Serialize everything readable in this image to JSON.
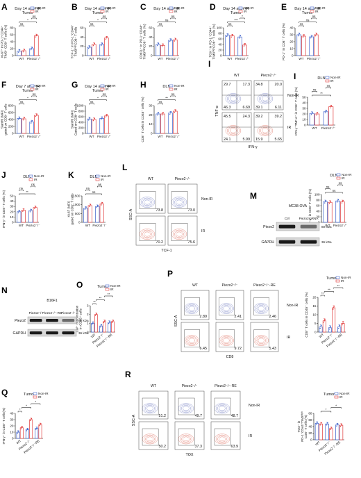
{
  "colors": {
    "nonir": "#3a5fc9",
    "ir": "#e03a3a"
  },
  "legend": {
    "nonir": "Non-IR",
    "ir": "IR"
  },
  "panels": [
    {
      "letter": "A",
      "title": [
        "Day 14 after IR",
        "Tumor"
      ],
      "ylabel": [
        "Ki-67⁺ in PD-1⁺CD44⁺",
        "TIM3⁺ CD8⁺ T cells (%)"
      ],
      "ylim": [
        0,
        80
      ],
      "ticks": [
        0,
        20,
        40,
        60,
        80
      ],
      "cats": [
        "WT",
        "Piezo2⁻/⁻"
      ],
      "nonir": [
        13,
        20
      ],
      "ir": [
        14,
        57
      ],
      "sig": [
        {
          "g": [
            0,
            1
          ],
          "t": "ns"
        },
        {
          "g": [
            0,
            3
          ],
          "t": "*"
        },
        {
          "g": [
            2,
            3
          ],
          "t": "ns"
        }
      ]
    },
    {
      "letter": "B",
      "title": [
        "Day 14 after IR",
        "Tumor"
      ],
      "ylabel": [
        "TCF-1⁺ in PD-1⁺CD44⁺",
        "TIM3ʰⁱᵍʰCD8⁺ T cells"
      ],
      "ylim": [
        0,
        60
      ],
      "ticks": [
        0,
        20,
        40,
        60
      ],
      "cats": [
        "WT",
        "Piezo2⁻/⁻"
      ],
      "nonir": [
        18,
        24
      ],
      "ir": [
        24,
        38
      ],
      "sig": [
        {
          "g": [
            0,
            1
          ],
          "t": "ns"
        },
        {
          "g": [
            0,
            3
          ],
          "t": "*"
        },
        {
          "g": [
            2,
            3
          ],
          "t": "ns"
        }
      ]
    },
    {
      "letter": "C",
      "title": [
        "Day 14 after IR"
      ],
      "ylabel": [
        "CD62L⁺ in PD-1⁺CD44⁺",
        "TIM3ʰⁱᵍʰCD8⁺ T cells (%)"
      ],
      "ylim": [
        0,
        60
      ],
      "ticks": [
        0,
        20,
        40,
        60
      ],
      "cats": [
        "WT",
        "Piezo2⁻/⁻"
      ],
      "nonir": [
        24,
        33
      ],
      "ir": [
        22,
        34
      ],
      "sig": [
        {
          "g": [
            0,
            1
          ],
          "t": "ns"
        },
        {
          "g": [
            0,
            3
          ],
          "t": "ns"
        },
        {
          "g": [
            2,
            3
          ],
          "t": "ns"
        }
      ]
    },
    {
      "letter": "D",
      "title": [
        "Day 14 after IR",
        "Tumor"
      ],
      "ylabel": [
        "TOX⁺ in PD-1⁺CD44⁺",
        "TIM3ʰⁱᵍʰCD8⁺ T cells (%)"
      ],
      "ylim": [
        0,
        100
      ],
      "ticks": [
        0,
        20,
        40,
        60,
        80,
        100
      ],
      "cats": [
        "WT",
        "Piezo2⁻/⁻"
      ],
      "nonir": [
        73,
        67
      ],
      "ir": [
        71,
        38
      ],
      "sig": [
        {
          "g": [
            0,
            1
          ],
          "t": "ns"
        },
        {
          "g": [
            0,
            3
          ],
          "t": "***"
        },
        {
          "g": [
            2,
            3
          ],
          "t": "*"
        }
      ]
    },
    {
      "letter": "E",
      "title": [
        "Day 14 after IR",
        "Tumor"
      ],
      "ylabel": [
        "PD-1⁺ in CD8⁺ T cells (%)"
      ],
      "ylim": [
        0,
        40
      ],
      "ticks": [
        0,
        10,
        20,
        30,
        40
      ],
      "cats": [
        "WT",
        "Piezo2⁻/⁻"
      ],
      "nonir": [
        30,
        27
      ],
      "ir": [
        28,
        30
      ],
      "sig": [
        {
          "g": [
            0,
            1
          ],
          "t": "ns"
        },
        {
          "g": [
            0,
            3
          ],
          "t": "ns"
        },
        {
          "g": [
            2,
            3
          ],
          "t": "ns"
        }
      ]
    },
    {
      "letter": "F",
      "title": [
        "Day 7 after IR",
        "Tumor"
      ],
      "ylabel": [
        "Slamf6 (MFI)",
        "gated on CD8⁺ T cells"
      ],
      "ylim": [
        0,
        800
      ],
      "ticks": [
        0,
        200,
        400,
        600,
        800
      ],
      "cats": [
        "WT",
        "Piezo2⁻/⁻"
      ],
      "nonir": [
        430,
        330
      ],
      "ir": [
        420,
        520
      ],
      "sig": [
        {
          "g": [
            0,
            1
          ],
          "t": "ns"
        },
        {
          "g": [
            0,
            3
          ],
          "t": "*"
        },
        {
          "g": [
            2,
            3
          ],
          "t": "ns"
        }
      ]
    },
    {
      "letter": "G",
      "title": [
        "Day 14 after IR",
        "Tumor"
      ],
      "ylabel": [
        "Slamf6 (MFI)",
        "Gated on CD8⁺ T cells"
      ],
      "ylim": [
        0,
        1000
      ],
      "ticks": [
        0,
        200,
        400,
        600,
        800,
        1000
      ],
      "cats": [
        "WT",
        "Piezo2⁻/⁻"
      ],
      "nonir": [
        520,
        540
      ],
      "ir": [
        500,
        630
      ],
      "sig": [
        {
          "g": [
            0,
            1
          ],
          "t": "ns"
        },
        {
          "g": [
            0,
            3
          ],
          "t": "*"
        },
        {
          "g": [
            2,
            3
          ],
          "t": "ns"
        }
      ]
    },
    {
      "letter": "H",
      "title": [
        "DLN"
      ],
      "ylabel": [
        "CD8⁺ T cells in CD45⁺ cells (%)"
      ],
      "ylim": [
        0,
        30
      ],
      "ticks": [
        0,
        10,
        20,
        30
      ],
      "cats": [
        "WT",
        "Piezo2⁻/⁻"
      ],
      "nonir": [
        21,
        22
      ],
      "ir": [
        21,
        24
      ],
      "sig": [
        {
          "g": [
            0,
            1
          ],
          "t": "ns"
        },
        {
          "g": [
            0,
            3
          ],
          "t": "**"
        },
        {
          "g": [
            2,
            3
          ],
          "t": "ns"
        }
      ]
    },
    {
      "letter": "I",
      "title": [
        "DLN"
      ],
      "ylabel": [
        "IFN-γ⁺TNF-α⁺ in CD8⁺ T cells (%)"
      ],
      "ylim": [
        0,
        50
      ],
      "ticks": [
        0,
        10,
        20,
        30,
        40,
        50
      ],
      "cats": [
        "WT",
        "Piezo2⁻/⁻"
      ],
      "nonir": [
        21,
        24
      ],
      "ir": [
        20,
        33
      ],
      "sig": [
        {
          "g": [
            0,
            3
          ],
          "t": "**"
        },
        {
          "g": [
            0,
            1
          ],
          "t": "ns"
        },
        {
          "g": [
            2,
            3
          ],
          "t": "ns"
        }
      ]
    },
    {
      "letter": "J",
      "title": [
        "DLN"
      ],
      "ylabel": [
        "IFN-γ⁺ in CD8⁺ T cells (%)"
      ],
      "ylim": [
        0,
        50
      ],
      "ticks": [
        0,
        10,
        20,
        30,
        40,
        50
      ],
      "cats": [
        "WT",
        "Piezo2⁻/⁻"
      ],
      "nonir": [
        20,
        22
      ],
      "ir": [
        23,
        28
      ],
      "sig": [
        {
          "g": [
            0,
            3
          ],
          "t": "**"
        },
        {
          "g": [
            0,
            1
          ],
          "t": "ns"
        },
        {
          "g": [
            2,
            3
          ],
          "t": "ns"
        }
      ]
    },
    {
      "letter": "K",
      "title": [
        "DLN"
      ],
      "ylabel": [
        "Ki-67 (MFI)",
        "gated on CD8⁺ T cells"
      ],
      "ylim": [
        0,
        1500
      ],
      "ticks": [
        0,
        500,
        1000,
        1500
      ],
      "cats": [
        "WT",
        "Piezo2⁻/⁻"
      ],
      "nonir": [
        800,
        900
      ],
      "ir": [
        950,
        1050
      ],
      "sig": [
        {
          "g": [
            0,
            3
          ],
          "t": "ns"
        },
        {
          "g": [
            0,
            1
          ],
          "t": "ns"
        },
        {
          "g": [
            2,
            3
          ],
          "t": "ns"
        }
      ]
    },
    {
      "letter": "",
      "title": [
        "DLN"
      ],
      "ylabel": [
        "TCF-1⁺ in CD8⁺ T cells (%)"
      ],
      "ylim": [
        0,
        100
      ],
      "ticks": [
        0,
        20,
        40,
        60,
        80,
        100
      ],
      "cats": [
        "WT",
        "Piezo2⁻/⁻"
      ],
      "nonir": [
        74,
        77
      ],
      "ir": [
        72,
        74
      ],
      "sig": [
        {
          "g": [
            0,
            3
          ],
          "t": "ns"
        },
        {
          "g": [
            0,
            1
          ],
          "t": "ns"
        },
        {
          "g": [
            2,
            3
          ],
          "t": "ns"
        }
      ]
    },
    {
      "letter": "O",
      "title": [
        "Tumor"
      ],
      "ylabel": [
        "Ca²⁺ concentration",
        "in CD45⁺ cells"
      ],
      "ylim": [
        0,
        3
      ],
      "ticks": [
        0,
        1,
        2,
        3
      ],
      "cats": [
        "WT",
        "Piezo2⁻/⁻",
        "Piezo2⁻/⁻-RE"
      ],
      "nonir": [
        1.0,
        0.7,
        1.1
      ],
      "ir": [
        2.0,
        1.2,
        1.2
      ],
      "sig": [
        {
          "g": [
            0,
            1
          ],
          "t": "**"
        },
        {
          "g": [
            1,
            3
          ],
          "t": "**"
        },
        {
          "g": [
            3,
            5
          ],
          "t": "**"
        }
      ]
    },
    {
      "letter": "",
      "title": [
        "Tumor"
      ],
      "ylabel": [
        "CD8⁺ T cells in CD45⁺ cells (%)"
      ],
      "ylim": [
        0,
        20
      ],
      "ticks": [
        0,
        5,
        10,
        15,
        20
      ],
      "cats": [
        "WT",
        "Piezo2⁻/⁻",
        "Piezo2⁻/⁻-RE"
      ],
      "nonir": [
        3,
        2.5,
        3
      ],
      "ir": [
        6.5,
        14,
        5
      ],
      "sig": [
        {
          "g": [
            0,
            1
          ],
          "t": "**"
        },
        {
          "g": [
            1,
            3
          ],
          "t": "**"
        },
        {
          "g": [
            3,
            5
          ],
          "t": "**"
        }
      ]
    },
    {
      "letter": "Q",
      "title": [
        "Tumor"
      ],
      "ylabel": [
        "IFN-γ⁺ in CD8⁺ T cells(%)"
      ],
      "ylim": [
        0,
        40
      ],
      "ticks": [
        0,
        10,
        20,
        30,
        40
      ],
      "cats": [
        "WT",
        "Piezo2⁻/⁻",
        "Piezo2⁻/⁻-RE"
      ],
      "nonir": [
        10,
        14,
        16
      ],
      "ir": [
        17,
        30,
        22
      ],
      "sig": [
        {
          "g": [
            0,
            1
          ],
          "t": "*"
        },
        {
          "g": [
            1,
            3
          ],
          "t": "*"
        },
        {
          "g": [
            3,
            5
          ],
          "t": "*"
        }
      ]
    },
    {
      "letter": "",
      "title": [
        "Tumor"
      ],
      "ylabel": [
        "TOX⁺ in",
        "PD-1⁺CD44⁺TIM3ʰⁱᵍʰ",
        "CD8⁺ T cells (%)"
      ],
      "ylim": [
        0,
        80
      ],
      "ticks": [
        0,
        20,
        40,
        60,
        80
      ],
      "cats": [
        "WT",
        "Piezo2⁻/⁻",
        "Piezo2⁻/⁻-RE"
      ],
      "nonir": [
        50,
        48,
        45
      ],
      "ir": [
        48,
        34,
        44
      ],
      "sig": [
        {
          "g": [
            1,
            3
          ],
          "t": "*"
        },
        {
          "g": [
            3,
            5
          ],
          "t": "*"
        }
      ]
    }
  ],
  "flows": [
    {
      "letter": "I",
      "cols": [
        "WT",
        "Piezo2⁻/⁻"
      ],
      "rows": [
        "Non-IR",
        "IR"
      ],
      "xaxis": "IFN-γ",
      "yaxis": "TNF-α",
      "quads": [
        [
          "29.7",
          "17.3",
          "46.3",
          "6.69"
        ],
        [
          "34.8",
          "20.0",
          "39.1",
          "6.11"
        ],
        [
          "45.5",
          "24.3",
          "24.1",
          "5.99"
        ],
        [
          "39.2",
          "39.2",
          "15.9",
          "5.65"
        ]
      ]
    },
    {
      "letter": "L",
      "cols": [
        "WT",
        "Piezo2⁻/⁻"
      ],
      "rows": [
        "Non-IR",
        "IR"
      ],
      "xaxis": "TCF-1",
      "yaxis": "SSC-A",
      "vals": [
        "73.8",
        "73.0",
        "70.2",
        "75.6"
      ]
    },
    {
      "letter": "P",
      "cols": [
        "WT",
        "Piezo2⁻/⁻",
        "Piezo2⁻/⁻-RE"
      ],
      "rows": [
        "Non-IR",
        "IR"
      ],
      "xaxis": "CD8",
      "yaxis": "SSC-A",
      "vals": [
        "2.89",
        "2.41",
        "2.46",
        "6.45",
        "9.72",
        "5.43"
      ]
    },
    {
      "letter": "R",
      "cols": [
        "WT",
        "Piezo2⁻/⁻",
        "Piezo2⁻/⁻-RE"
      ],
      "rows": [
        "Non-IR",
        "IR"
      ],
      "xaxis": "TOX",
      "yaxis": "SSC-A",
      "vals": [
        "51.2",
        "49.7",
        "48.7",
        "50.2",
        "37.3",
        "63.9"
      ]
    }
  ],
  "westerns": [
    {
      "letter": "M",
      "title": "MC38-OVA",
      "lanes": [
        "Ctrl",
        "Piezo2-gRNA"
      ],
      "bands": [
        {
          "name": "Piezo2",
          "kda": "80 kDa"
        },
        {
          "name": "GAPDH",
          "kda": "36 kDa"
        }
      ]
    },
    {
      "letter": "N",
      "title": "B16F1",
      "lanes": [
        "Piezo2⁻/⁻",
        "Piezo2⁻/⁻-RE",
        "Piezo2⁻/⁻"
      ],
      "bands": [
        {
          "name": "Piezo2",
          "kda": "80 kDa"
        },
        {
          "name": "GAPDH",
          "kda": "36 kDa"
        }
      ]
    }
  ]
}
